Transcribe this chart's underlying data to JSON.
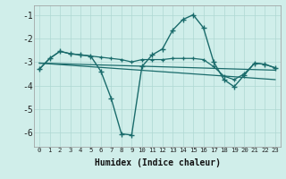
{
  "xlabel": "Humidex (Indice chaleur)",
  "background_color": "#d0eeea",
  "grid_color": "#aed8d2",
  "line_color": "#1a6b6b",
  "xlim": [
    -0.5,
    23.5
  ],
  "ylim": [
    -6.6,
    -0.6
  ],
  "yticks": [
    -6,
    -5,
    -4,
    -3,
    -2,
    -1
  ],
  "xticks": [
    0,
    1,
    2,
    3,
    4,
    5,
    6,
    7,
    8,
    9,
    10,
    11,
    12,
    13,
    14,
    15,
    16,
    17,
    18,
    19,
    20,
    21,
    22,
    23
  ],
  "trend1_x": [
    0,
    23
  ],
  "trend1_y": [
    -3.05,
    -3.35
  ],
  "trend2_x": [
    0,
    23
  ],
  "trend2_y": [
    -3.05,
    -3.75
  ],
  "zigzag_x": [
    0,
    1,
    2,
    3,
    4,
    5,
    6,
    7,
    8,
    9,
    10,
    11,
    12,
    13,
    14,
    15,
    16,
    17,
    18,
    19,
    20,
    21,
    22,
    23
  ],
  "zigzag_y": [
    -3.3,
    -2.85,
    -2.55,
    -2.65,
    -2.7,
    -2.75,
    -3.4,
    -4.55,
    -6.05,
    -6.1,
    -3.2,
    -2.7,
    -2.45,
    -1.65,
    -1.2,
    -1.0,
    -1.55,
    -3.0,
    -3.75,
    -4.05,
    -3.55,
    -3.05,
    -3.1,
    -3.25
  ],
  "smooth_x": [
    0,
    1,
    2,
    3,
    4,
    5,
    6,
    7,
    8,
    9,
    10,
    11,
    12,
    13,
    14,
    15,
    16,
    17,
    18,
    19,
    20,
    21,
    22,
    23
  ],
  "smooth_y": [
    -3.3,
    -2.85,
    -2.55,
    -2.65,
    -2.7,
    -2.75,
    -2.8,
    -2.85,
    -2.9,
    -3.0,
    -2.9,
    -2.9,
    -2.9,
    -2.85,
    -2.85,
    -2.85,
    -2.9,
    -3.2,
    -3.6,
    -3.75,
    -3.5,
    -3.05,
    -3.1,
    -3.25
  ]
}
